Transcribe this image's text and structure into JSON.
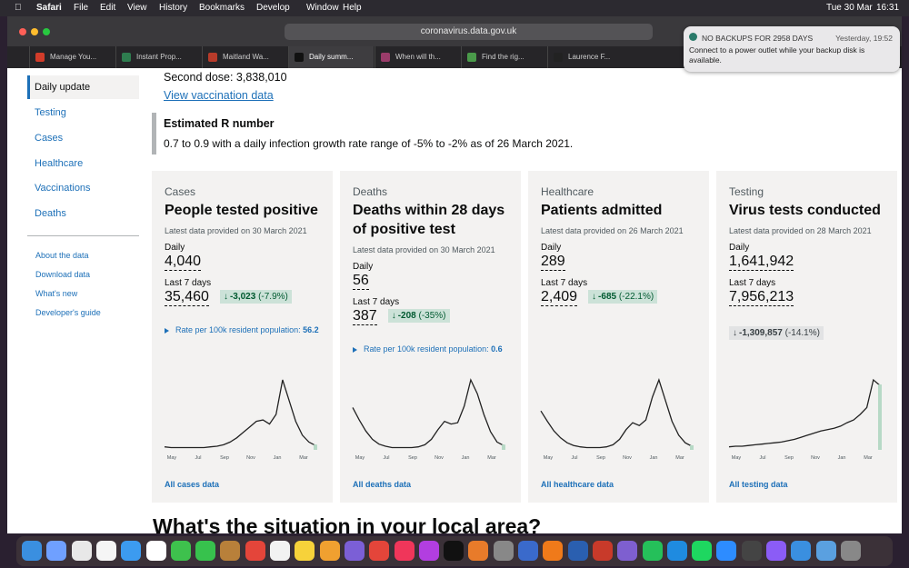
{
  "menubar": {
    "app": "Safari",
    "items": [
      "File",
      "Edit",
      "View",
      "History",
      "Bookmarks",
      "Develop",
      "Window",
      "Help"
    ],
    "date": "Tue 30 Mar",
    "time": "16:31"
  },
  "browser": {
    "url": "coronavirus.data.gov.uk",
    "tabs": [
      "Manage You...",
      "Instant Prop...",
      "Maitland Wa...",
      "Daily summ...",
      "When will th...",
      "Find the rig...",
      "Laurence F..."
    ],
    "active_tab": 3
  },
  "notification": {
    "title": "NO BACKUPS FOR 2958 DAYS",
    "time": "Yesterday, 19:52",
    "body": "Connect to a power outlet while your backup disk is available."
  },
  "sidebar": {
    "nav": [
      "Daily update",
      "Testing",
      "Cases",
      "Healthcare",
      "Vaccinations",
      "Deaths"
    ],
    "selected": 0,
    "links": [
      "About the data",
      "Download data",
      "What's new",
      "Developer's guide"
    ]
  },
  "vaccination": {
    "second_dose": "Second dose: 3,838,010",
    "link": "View vaccination data"
  },
  "r_number": {
    "title": "Estimated R number",
    "text": "0.7 to 0.9 with a daily infection growth rate range of -5% to -2% as of 26 March 2021."
  },
  "cards": [
    {
      "category": "Cases",
      "title": "People tested positive",
      "latest": "Latest data provided on 30 March 2021",
      "daily_label": "Daily",
      "daily": "4,040",
      "week_label": "Last 7 days",
      "week": "35,460",
      "change": "-3,023",
      "change_pct": "(-7.9%)",
      "badge_bg": "#cce2d8",
      "badge_fg": "#005a30",
      "rate_label": "Rate per 100k resident population:",
      "rate": "56.2",
      "chart": {
        "months": [
          "May",
          "Jul",
          "Sep",
          "Nov",
          "Jan",
          "Mar"
        ],
        "values": [
          3,
          2,
          2,
          2,
          2,
          2,
          2,
          3,
          4,
          6,
          10,
          16,
          24,
          32,
          40,
          42,
          36,
          50,
          100,
          70,
          40,
          20,
          10,
          5
        ]
      },
      "link": "All cases data"
    },
    {
      "category": "Deaths",
      "title": "Deaths within 28 days of positive test",
      "latest": "Latest data provided on 30 March 2021",
      "daily_label": "Daily",
      "daily": "56",
      "week_label": "Last 7 days",
      "week": "387",
      "change": "-208",
      "change_pct": "(-35%)",
      "badge_bg": "#cce2d8",
      "badge_fg": "#005a30",
      "rate_label": "Rate per 100k resident population:",
      "rate": "0.6",
      "chart": {
        "months": [
          "May",
          "Jul",
          "Sep",
          "Nov",
          "Jan",
          "Mar"
        ],
        "values": [
          60,
          42,
          26,
          14,
          7,
          4,
          2,
          2,
          2,
          2,
          3,
          6,
          14,
          28,
          40,
          36,
          38,
          62,
          100,
          80,
          50,
          25,
          10,
          5
        ]
      },
      "link": "All deaths data"
    },
    {
      "category": "Healthcare",
      "title": "Patients admitted",
      "latest": "Latest data provided on 26 March 2021",
      "daily_label": "Daily",
      "daily": "289",
      "week_label": "Last 7 days",
      "week": "2,409",
      "change": "-685",
      "change_pct": "(-22.1%)",
      "badge_bg": "#cce2d8",
      "badge_fg": "#005a30",
      "chart": {
        "months": [
          "May",
          "Jul",
          "Sep",
          "Nov",
          "Jan",
          "Mar"
        ],
        "values": [
          55,
          40,
          26,
          16,
          9,
          5,
          3,
          2,
          2,
          2,
          3,
          6,
          14,
          28,
          38,
          34,
          42,
          75,
          100,
          70,
          40,
          20,
          9,
          4
        ]
      },
      "link": "All healthcare data"
    },
    {
      "category": "Testing",
      "title": "Virus tests conducted",
      "latest": "Latest data provided on 28 March 2021",
      "daily_label": "Daily",
      "daily": "1,641,942",
      "week_label": "Last 7 days",
      "week": "7,956,213",
      "change": "-1,309,857",
      "change_pct": "(-14.1%)",
      "badge_bg": "#e2e3e4",
      "badge_fg": "#383f43",
      "chart": {
        "months": [
          "May",
          "Jul",
          "Sep",
          "Nov",
          "Jan",
          "Mar"
        ],
        "values": [
          3,
          4,
          4,
          5,
          6,
          7,
          8,
          9,
          10,
          12,
          14,
          17,
          20,
          23,
          26,
          28,
          30,
          33,
          38,
          42,
          50,
          60,
          100,
          92
        ]
      },
      "link": "All testing data"
    }
  ],
  "local_heading": "What's the situation in your local area?"
}
